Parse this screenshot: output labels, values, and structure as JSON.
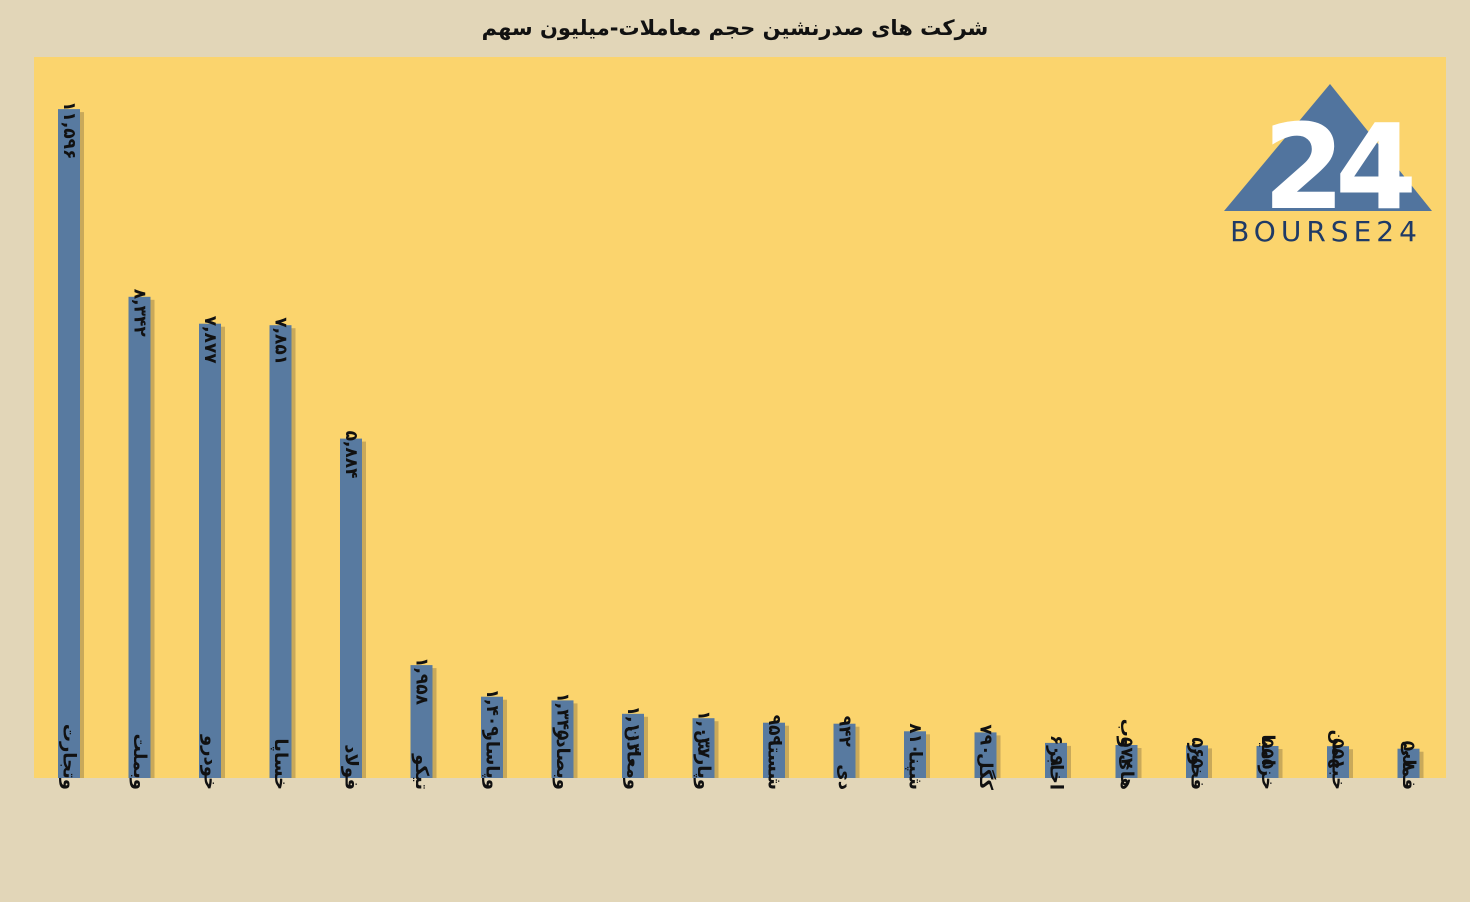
{
  "colors": {
    "background": "#e2d6b8",
    "plot_background": "#fbd46d",
    "bar": "#587aa0",
    "bar_shadow": "#c9a95a",
    "logo_triangle": "#51749e",
    "logo_text": "#1f3a66"
  },
  "logo": {
    "mark": "24",
    "text": "BOURSE24",
    "icon": "triangle-24-logo"
  },
  "chart_data": {
    "type": "bar",
    "title": "شرکت های صدرنشین حجم معاملات-میلیون سهم",
    "xlabel": "",
    "ylabel": "",
    "ylim": [
      0,
      12500
    ],
    "grid": false,
    "legend": "none",
    "categories": [
      "وتجارت",
      "وبملت",
      "خودرو",
      "خساپا",
      "فولاد",
      "تیکو",
      "وپاسار",
      "وبصادر",
      "ومعادن",
      "وپارس",
      "شستا",
      "دی",
      "شپنا",
      "کگل",
      "اخابر",
      "های وب",
      "فخوز",
      "خزامیا",
      "خبهمن",
      "فملی"
    ],
    "values": [
      11596,
      8342,
      7877,
      7851,
      5884,
      1958,
      1409,
      1345,
      1113,
      1037,
      959,
      942,
      810,
      790,
      609,
      572,
      565,
      555,
      551,
      508
    ],
    "value_labels": [
      "۱۱,۵۹۶",
      "۸,۳۴۲",
      "۷,۸۷۷",
      "۷,۸۵۱",
      "۵,۸۸۴",
      "۱,۹۵۸",
      "۱,۴۰۹",
      "۱,۳۴۵",
      "۱,۱۱۳",
      "۱,۰۳۷",
      "۹۵۹",
      "۹۴۲",
      "۸۱۰",
      "۷۹۰",
      "۶۰۹",
      "۵۷۲",
      "۵۶۵",
      "۵۵۵",
      "۵۵۱",
      "۵۰۸"
    ]
  }
}
